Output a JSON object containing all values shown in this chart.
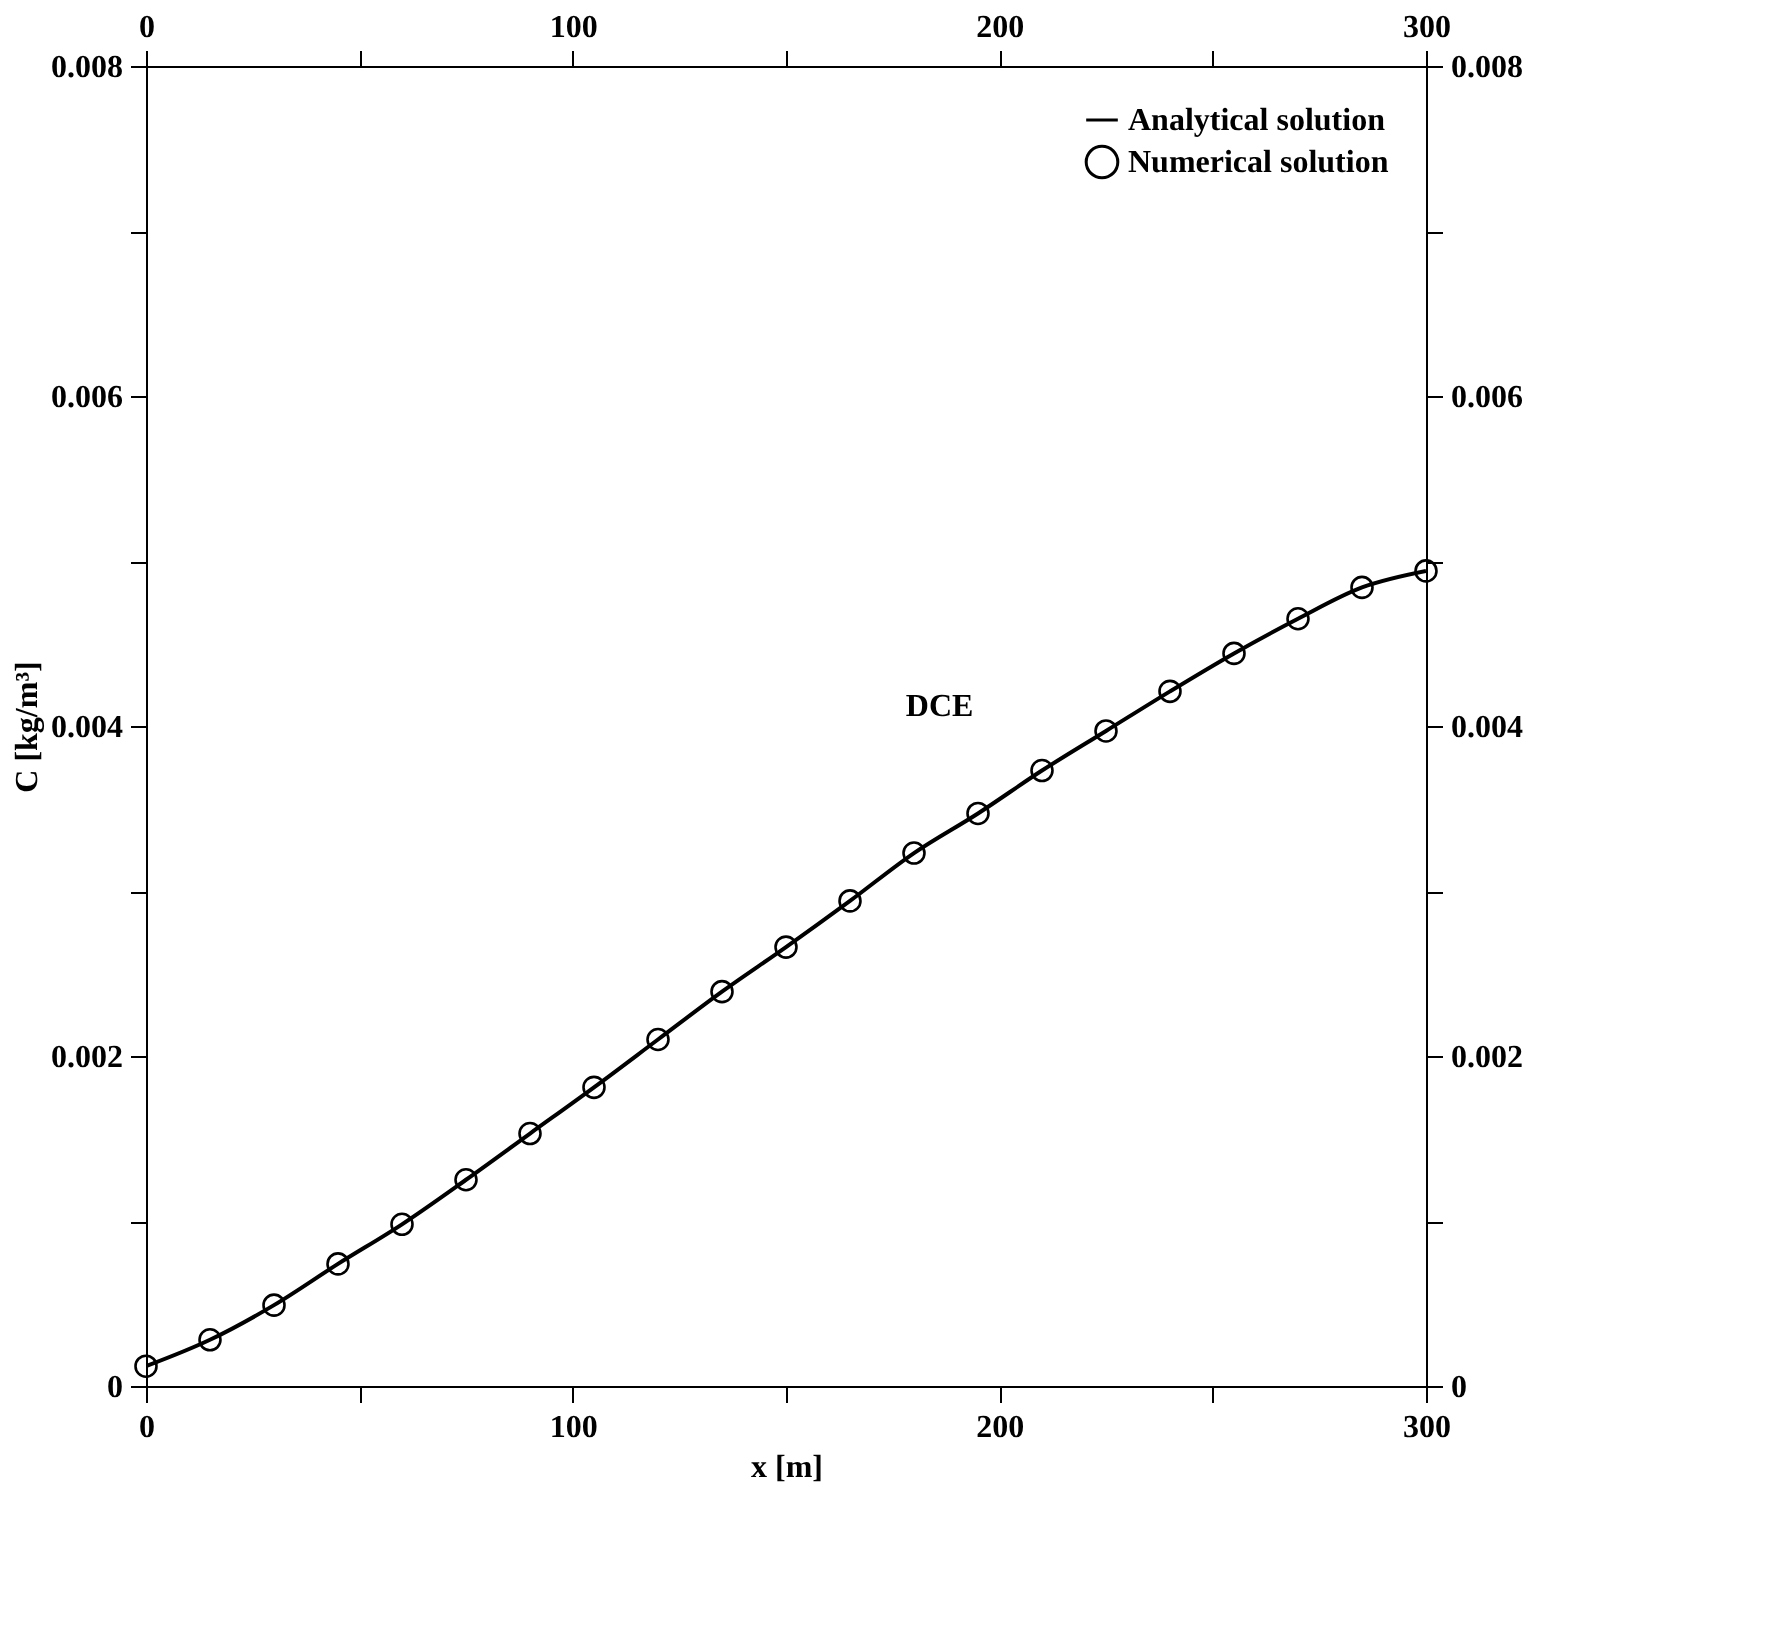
{
  "chart_data": {
    "type": "line",
    "xlabel": "x [m]",
    "ylabel": "C [kg/m³]",
    "xlim": [
      0,
      300
    ],
    "ylim": [
      0,
      0.008
    ],
    "x2lim": [
      0,
      300
    ],
    "y2lim": [
      0,
      0.008
    ],
    "xticks": [
      0,
      {
        "value": 50,
        "label": null
      },
      100,
      {
        "value": 150,
        "label": null
      },
      200,
      {
        "value": 250,
        "label": null
      },
      300
    ],
    "x2ticks": [
      0,
      {
        "value": 50,
        "label": null
      },
      100,
      {
        "value": 150,
        "label": null
      },
      200,
      {
        "value": 250,
        "label": null
      },
      300
    ],
    "yticks": [
      0,
      {
        "value": 0.001,
        "label": null
      },
      0.002,
      {
        "value": 0.003,
        "label": null
      },
      0.004,
      {
        "value": 0.005,
        "label": null
      },
      0.006,
      {
        "value": 0.007,
        "label": null
      },
      0.008
    ],
    "y2ticks": [
      0,
      {
        "value": 0.001,
        "label": null
      },
      0.002,
      {
        "value": 0.003,
        "label": null
      },
      0.004,
      {
        "value": 0.005,
        "label": null
      },
      0.006,
      {
        "value": 0.007,
        "label": null
      },
      0.008
    ],
    "grid": false,
    "legend": "top right",
    "annotations": [
      "DCE"
    ],
    "series": [
      {
        "name": "Analytical solution",
        "color": "#000000",
        "marker": "none",
        "line_style": "solid",
        "x": [
          0,
          15,
          30,
          45,
          60,
          75,
          90,
          105,
          120,
          135,
          150,
          165,
          180,
          195,
          210,
          225,
          240,
          255,
          270,
          285,
          300
        ],
        "values": [
          0.00012,
          0.00028,
          0.00049,
          0.00074,
          0.00098,
          0.00125,
          0.00153,
          0.00181,
          0.0021,
          0.00239,
          0.00266,
          0.00294,
          0.00323,
          0.00347,
          0.00373,
          0.00397,
          0.00421,
          0.00444,
          0.00465,
          0.00484,
          0.00494
        ]
      },
      {
        "name": "Numerical solution",
        "type": "scatter",
        "color": "#000000",
        "marker": "circle",
        "x": [
          0,
          15,
          30,
          45,
          60,
          75,
          90,
          105,
          120,
          135,
          150,
          165,
          180,
          195,
          210,
          225,
          240,
          255,
          270,
          285,
          300
        ],
        "values": [
          0.00012,
          0.00028,
          0.00049,
          0.00074,
          0.00098,
          0.00125,
          0.00153,
          0.00181,
          0.0021,
          0.00239,
          0.00266,
          0.00294,
          0.00323,
          0.00347,
          0.00373,
          0.00397,
          0.00421,
          0.00444,
          0.00465,
          0.00484,
          0.00494
        ]
      }
    ]
  }
}
